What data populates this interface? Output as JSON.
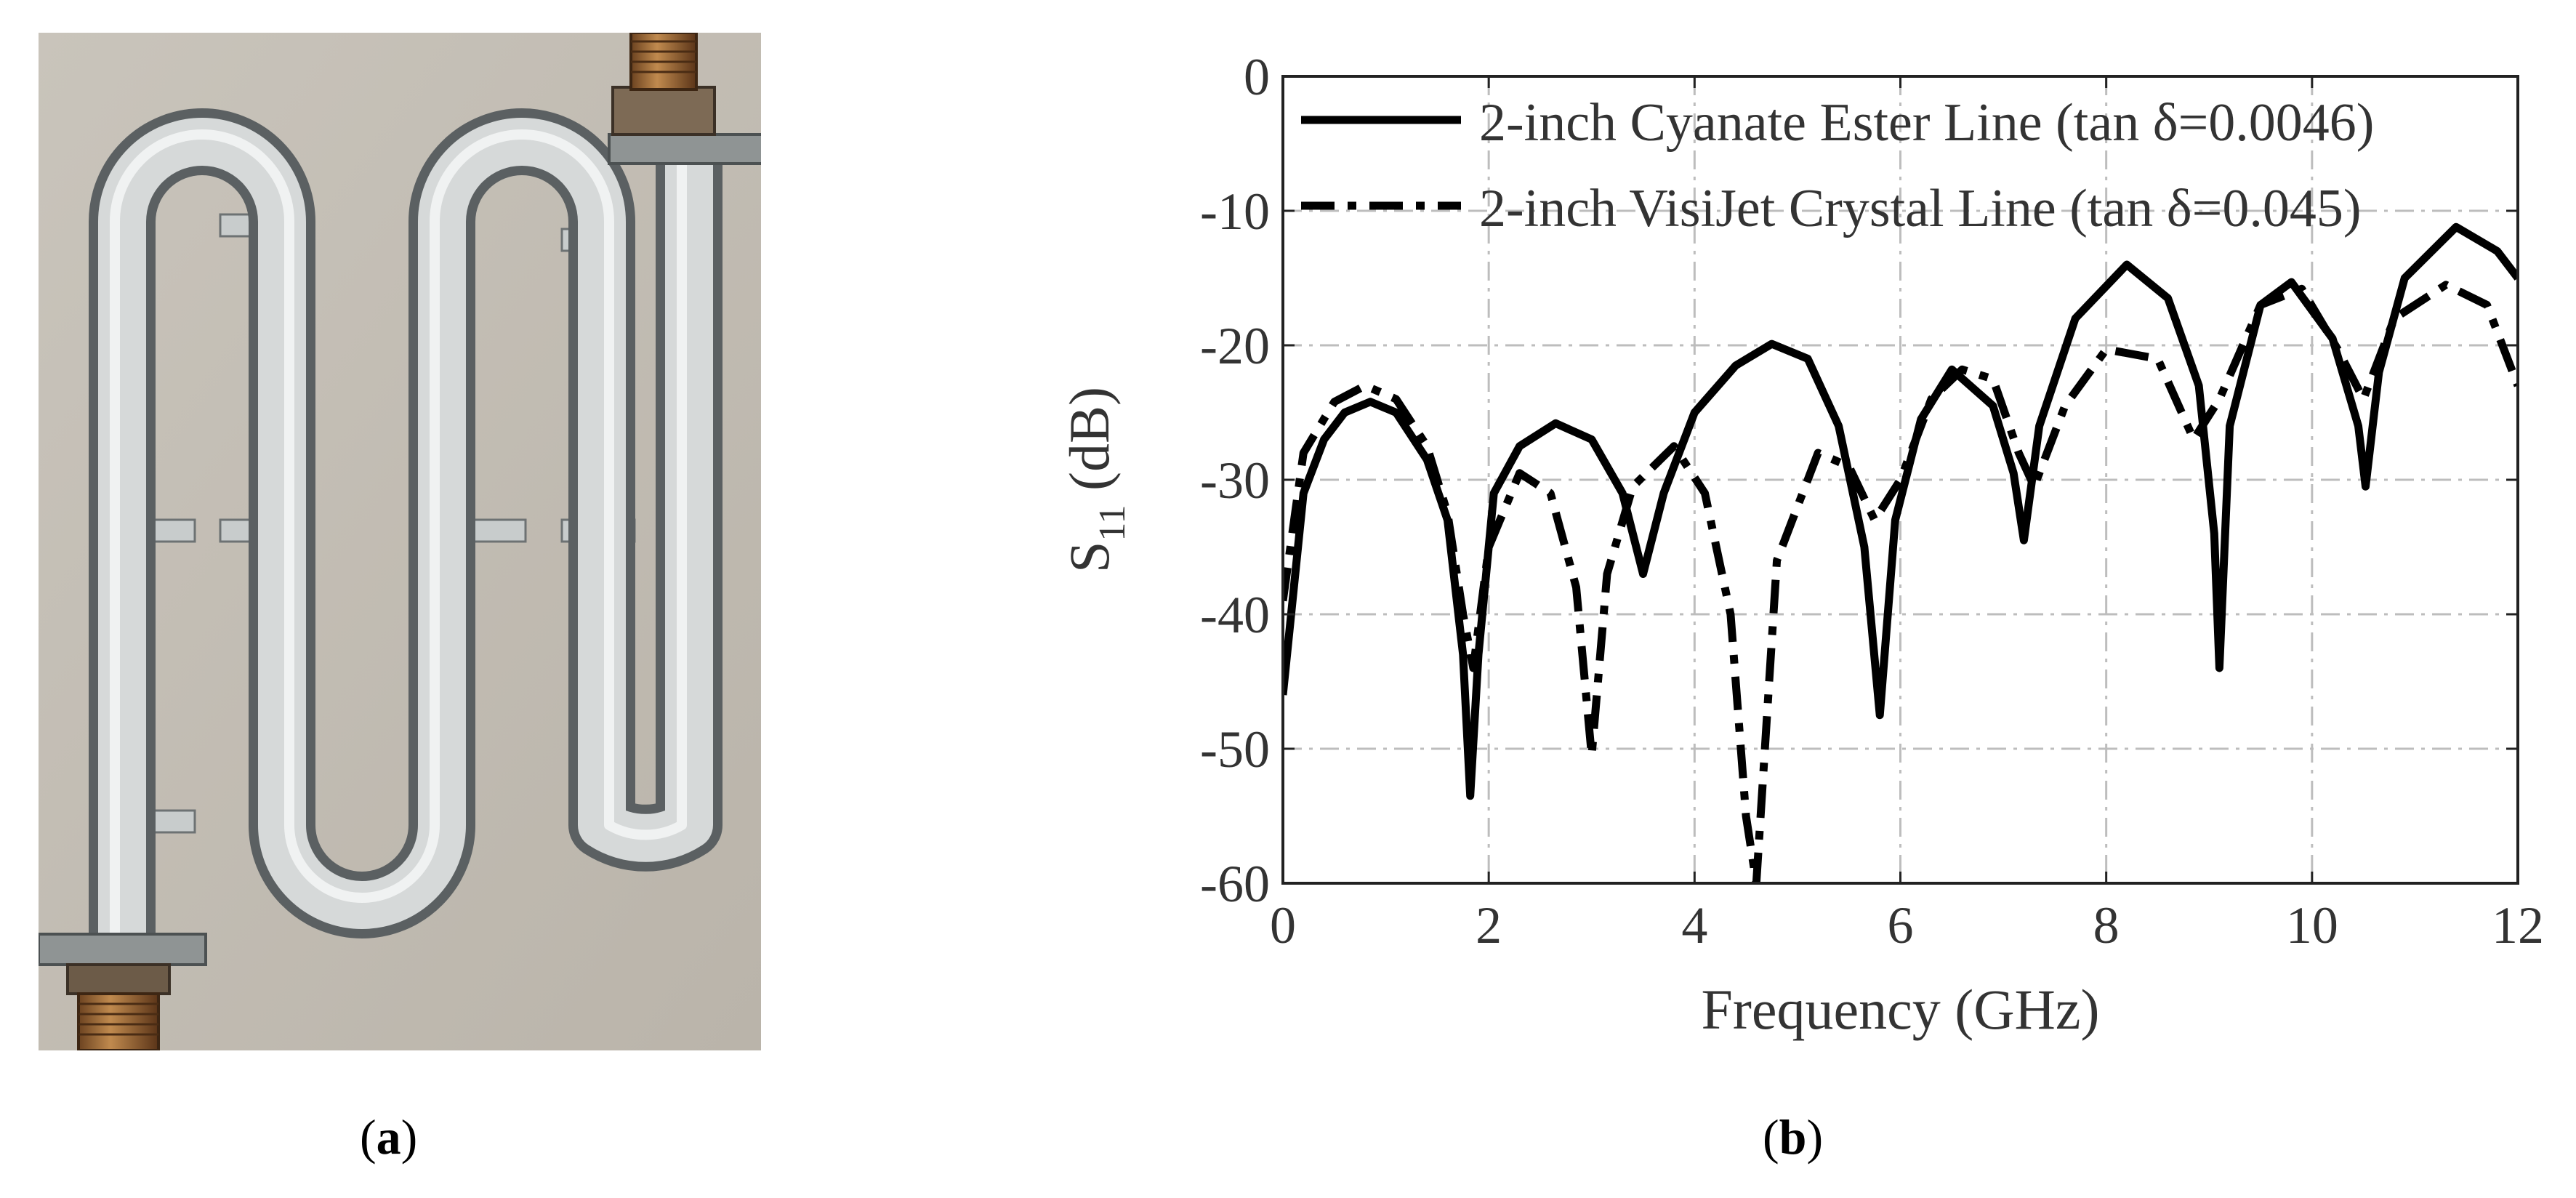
{
  "captions": {
    "a": {
      "open": "(",
      "letter": "a",
      "close": ")"
    },
    "b": {
      "open": "(",
      "letter": "b",
      "close": ")"
    }
  },
  "photo": {
    "description_icon": "meandered-waveguide-photo",
    "colors": {
      "background": "#c2bcb2",
      "metal": "#cfd2d2",
      "connector": "#a06a32"
    }
  },
  "chart_data": {
    "type": "line",
    "title": "",
    "xlabel": "Frequency (GHz)",
    "ylabel": {
      "main": "S",
      "sub": "11",
      "unit": " (dB)"
    },
    "xlim": [
      0,
      12
    ],
    "ylim": [
      -60,
      0
    ],
    "xticks": [
      0,
      2,
      4,
      6,
      8,
      10,
      12
    ],
    "yticks": [
      0,
      -10,
      -20,
      -30,
      -40,
      -50,
      -60
    ],
    "grid": true,
    "legend_position": "top",
    "series": [
      {
        "name": "2-inch Cyanate Ester Line (tan  δ=0.0046)",
        "style": "solid",
        "color": "#000000",
        "x": [
          0.0,
          0.2,
          0.4,
          0.6,
          0.85,
          1.1,
          1.4,
          1.6,
          1.75,
          1.82,
          1.9,
          2.05,
          2.3,
          2.65,
          3.0,
          3.3,
          3.5,
          3.7,
          4.0,
          4.4,
          4.75,
          5.1,
          5.4,
          5.65,
          5.8,
          5.95,
          6.2,
          6.5,
          6.9,
          7.1,
          7.2,
          7.35,
          7.7,
          8.2,
          8.6,
          8.9,
          9.05,
          9.1,
          9.2,
          9.5,
          9.8,
          10.2,
          10.45,
          10.52,
          10.65,
          10.9,
          11.4,
          11.8,
          12.0
        ],
        "y": [
          -46,
          -31,
          -27,
          -25,
          -24.2,
          -25,
          -28.5,
          -33,
          -43,
          -53.5,
          -43,
          -31,
          -27.5,
          -25.8,
          -27,
          -31,
          -37,
          -31,
          -25,
          -21.5,
          -19.9,
          -21,
          -26,
          -35,
          -47.5,
          -33,
          -25.5,
          -21.8,
          -24.5,
          -29.5,
          -34.5,
          -26,
          -18,
          -14,
          -16.5,
          -23,
          -34,
          -44,
          -26,
          -17,
          -15.3,
          -19.5,
          -26,
          -30.5,
          -22,
          -15,
          -11.2,
          -13,
          -15
        ]
      },
      {
        "name": "2-inch VisiJet Crystal Line (tan  δ=0.045)",
        "style": "dash-dot",
        "color": "#000000",
        "x": [
          0.0,
          0.2,
          0.5,
          0.8,
          1.1,
          1.4,
          1.6,
          1.75,
          1.85,
          2.0,
          2.3,
          2.6,
          2.85,
          3.0,
          3.15,
          3.4,
          3.8,
          4.1,
          4.35,
          4.5,
          4.6,
          4.8,
          5.2,
          5.5,
          5.75,
          6.0,
          6.3,
          6.6,
          6.9,
          7.15,
          7.3,
          7.6,
          8.0,
          8.5,
          8.85,
          9.1,
          9.5,
          9.9,
          10.25,
          10.5,
          10.8,
          11.3,
          11.7,
          12.0
        ],
        "y": [
          -39,
          -28,
          -24.2,
          -23,
          -24,
          -27.5,
          -32.5,
          -40,
          -44,
          -35,
          -29.5,
          -31,
          -38,
          -50.5,
          -37,
          -30.5,
          -27.5,
          -31,
          -40,
          -55,
          -60,
          -36,
          -28,
          -29,
          -33,
          -30,
          -24,
          -21.8,
          -22.5,
          -28,
          -30.5,
          -24.5,
          -20.3,
          -21,
          -27,
          -24,
          -17,
          -15.8,
          -20.3,
          -24,
          -18,
          -15.5,
          -17,
          -23
        ]
      }
    ]
  }
}
